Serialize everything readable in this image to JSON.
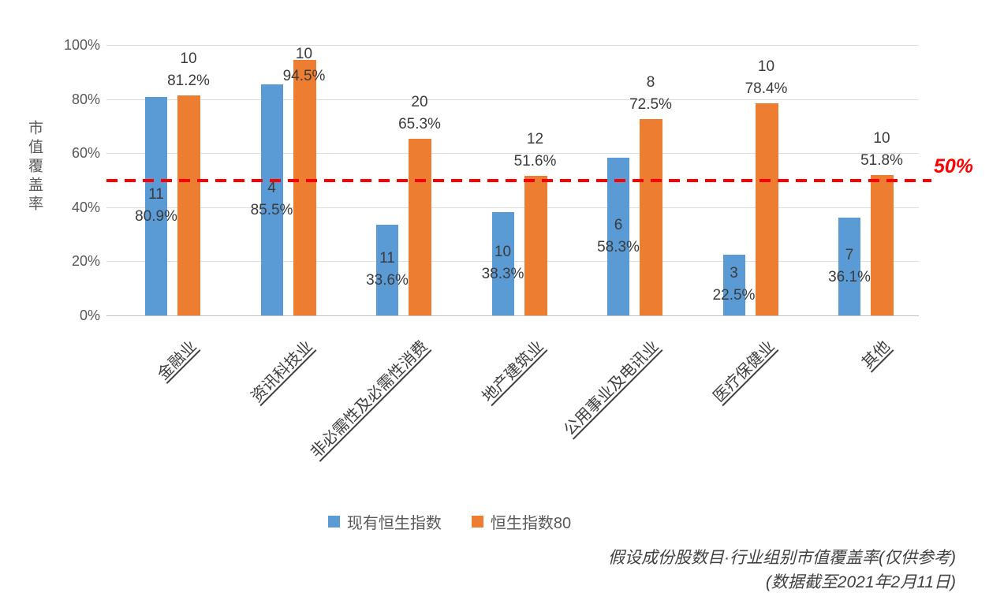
{
  "chart_data": {
    "type": "bar",
    "title": "",
    "ylabel": "市值覆盖率",
    "xlabel": "",
    "ylim": [
      0,
      100
    ],
    "grid": true,
    "legend_position": "bottom",
    "yticks": [
      "100%",
      "80%",
      "60%",
      "40%",
      "20%",
      "0%"
    ],
    "categories": [
      "金融业",
      "资讯科技业",
      "非必需性及必需性消费",
      "地产建筑业",
      "公用事业及电讯业",
      "医疗保健业",
      "其他"
    ],
    "series": [
      {
        "name": "现有恒生指数",
        "color": "#5B9BD5",
        "counts": [
          11,
          4,
          11,
          10,
          6,
          3,
          7
        ],
        "values": [
          80.9,
          85.5,
          33.6,
          38.3,
          58.3,
          22.5,
          36.1
        ]
      },
      {
        "name": "恒生指数80",
        "color": "#ED7D31",
        "counts": [
          10,
          10,
          20,
          12,
          8,
          10,
          10
        ],
        "values": [
          81.2,
          94.5,
          65.3,
          51.6,
          72.5,
          78.4,
          51.8
        ]
      }
    ],
    "reference_line": {
      "value": 50,
      "label": "50%",
      "color": "#FF0000"
    },
    "footnote_line1": "假设成份股数目·行业组别市值覆盖率(仅供参考)",
    "footnote_line2": "(数据截至2021年2月11日)"
  }
}
